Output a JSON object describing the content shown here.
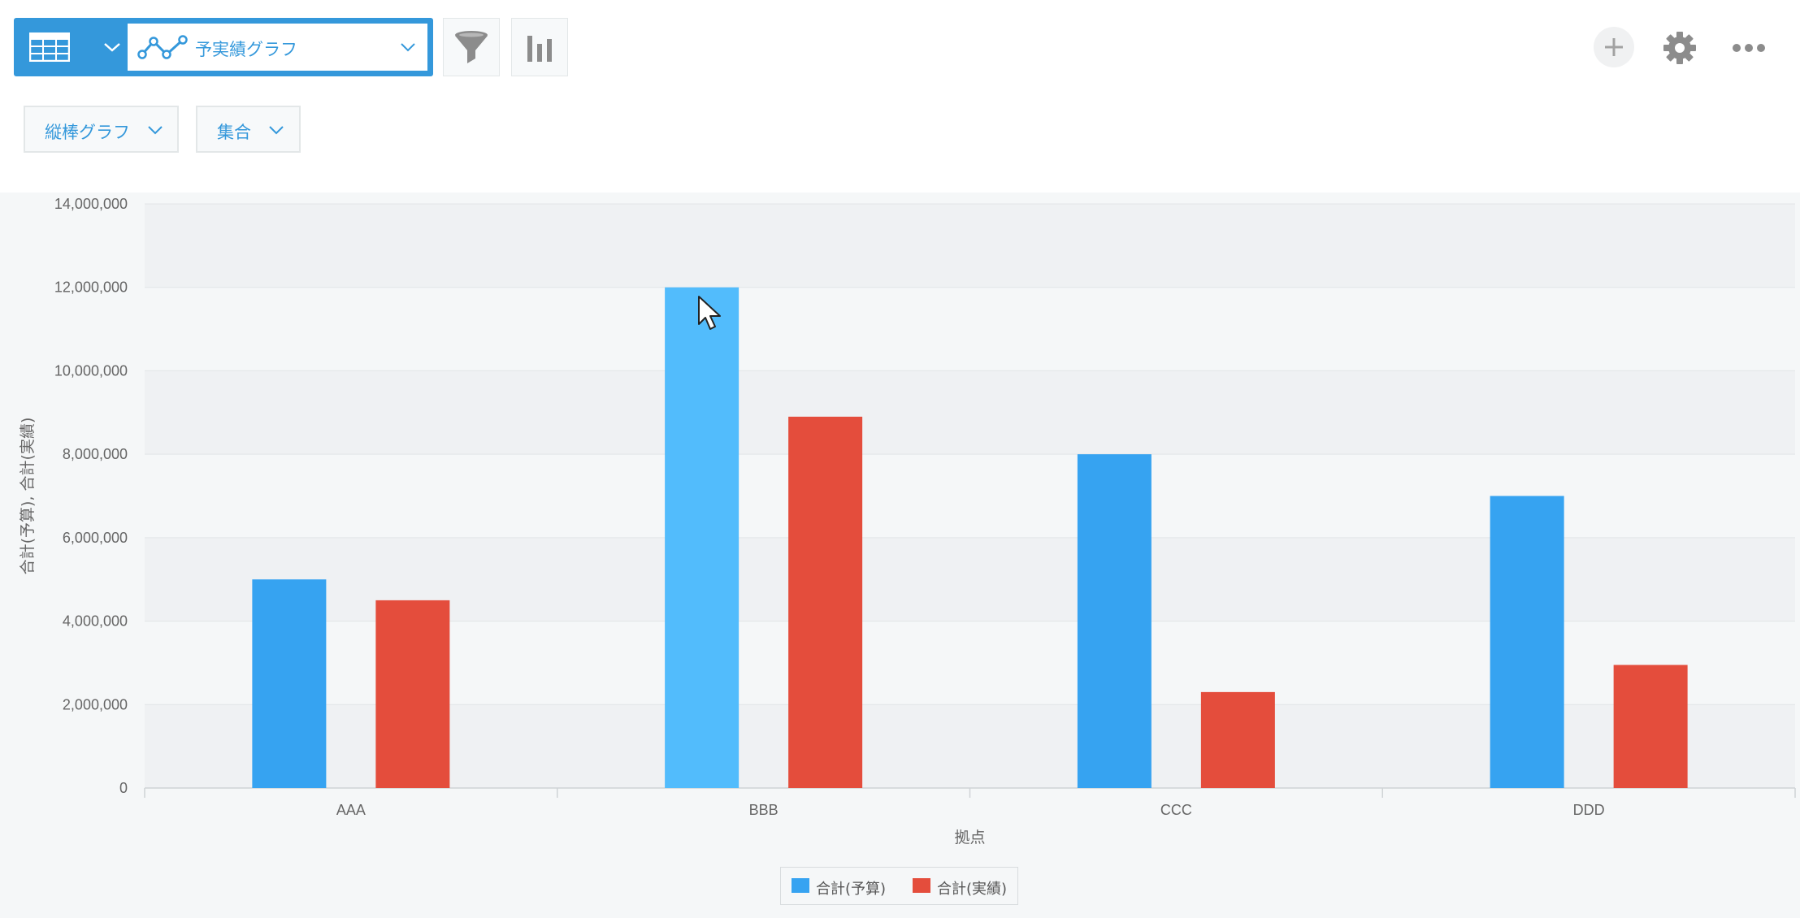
{
  "toolbar": {
    "view_name": "予実績グラフ",
    "icons": [
      "table-icon",
      "chevron-down-icon",
      "line-chart-icon",
      "filter-icon",
      "bar-chart-icon",
      "plus-icon",
      "gear-icon",
      "more-icon"
    ]
  },
  "selectors": {
    "chart_type": "縦棒グラフ",
    "aggregation": "集合"
  },
  "colors": {
    "accent": "#3498db",
    "budget": "#36a3f1",
    "budget_hover": "#52bcfc",
    "actual": "#e44d3c",
    "plot_band": "#eff1f3",
    "chart_bg": "#f5f7f8"
  },
  "chart_data": {
    "type": "bar",
    "categories": [
      "AAA",
      "BBB",
      "CCC",
      "DDD"
    ],
    "series": [
      {
        "name": "合計(予算)",
        "values": [
          5000000,
          12000000,
          8000000,
          7000000
        ]
      },
      {
        "name": "合計(実績)",
        "values": [
          4500000,
          8900000,
          2300000,
          2950000
        ]
      }
    ],
    "xlabel": "拠点",
    "ylabel": "合計(予算), 合計(実績)",
    "ylim": [
      0,
      14000000
    ],
    "yticks": [
      "0",
      "2,000,000",
      "4,000,000",
      "6,000,000",
      "8,000,000",
      "10,000,000",
      "12,000,000",
      "14,000,000"
    ],
    "highlighted": {
      "series": 0,
      "category": 1
    },
    "grid": true,
    "legend_position": "bottom-center"
  }
}
